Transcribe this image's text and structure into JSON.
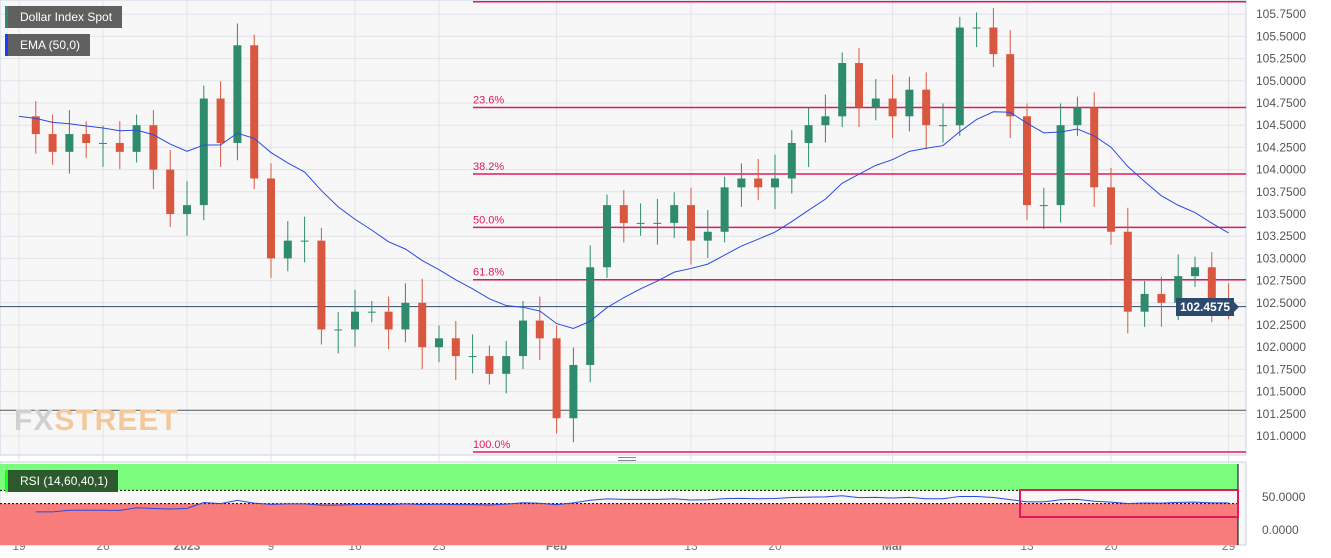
{
  "title": "Dollar Index Spot",
  "ema_label": "EMA (50,0)",
  "rsi_label": "RSI (14,60,40,1)",
  "last_price": "102.4575",
  "logo": {
    "a": "FX",
    "b": "STREET"
  },
  "colors": {
    "up": "#2e8b6e",
    "down": "#d9573f",
    "ema": "#2a4be0",
    "fib": "#e0195a",
    "rsi_line": "#2a4be0",
    "rsi_high": "#7cfc7c",
    "rsi_low": "#f87c7c"
  },
  "chart_data": {
    "type": "candlestick",
    "ylim": [
      100.75,
      105.9
    ],
    "yticks": [
      "105.7500",
      "105.5000",
      "105.2500",
      "105.0000",
      "104.7500",
      "104.5000",
      "104.2500",
      "104.0000",
      "103.7500",
      "103.5000",
      "103.2500",
      "103.0000",
      "102.7500",
      "102.5000",
      "102.2500",
      "102.0000",
      "101.7500",
      "101.5000",
      "101.2500",
      "101.0000"
    ],
    "xticks": [
      {
        "label": "19",
        "i": 0
      },
      {
        "label": "26",
        "i": 5
      },
      {
        "label": "2023",
        "i": 10,
        "bold": true
      },
      {
        "label": "9",
        "i": 15
      },
      {
        "label": "16",
        "i": 20
      },
      {
        "label": "23",
        "i": 25
      },
      {
        "label": "Feb",
        "i": 32,
        "bold": true
      },
      {
        "label": "13",
        "i": 40
      },
      {
        "label": "20",
        "i": 45
      },
      {
        "label": "Mar",
        "i": 52,
        "bold": true
      },
      {
        "label": "13",
        "i": 60
      },
      {
        "label": "20",
        "i": 65
      },
      {
        "label": "29",
        "i": 72
      }
    ],
    "closes": [
      104.6,
      104.4,
      104.2,
      104.4,
      104.3,
      104.3,
      104.2,
      104.5,
      104.0,
      103.5,
      103.6,
      104.8,
      104.3,
      105.4,
      103.9,
      103.0,
      103.2,
      103.2,
      102.2,
      102.2,
      102.4,
      102.4,
      102.2,
      102.5,
      102.0,
      102.1,
      101.9,
      101.9,
      101.7,
      101.9,
      102.3,
      102.1,
      101.2,
      101.8,
      102.9,
      103.6,
      103.4,
      103.4,
      103.4,
      103.6,
      103.2,
      103.3,
      103.8,
      103.9,
      103.8,
      103.9,
      104.3,
      104.5,
      104.6,
      105.2,
      104.7,
      104.8,
      104.6,
      104.9,
      104.5,
      104.5,
      105.6,
      105.6,
      105.3,
      104.6,
      103.6,
      103.6,
      104.5,
      104.7,
      103.8,
      103.3,
      102.4,
      102.6,
      102.5,
      102.8,
      102.9,
      102.5,
      102.46
    ],
    "fib_levels": [
      {
        "label": "",
        "price": 105.89
      },
      {
        "label": "23.6%",
        "price": 104.7
      },
      {
        "label": "38.2%",
        "price": 103.95
      },
      {
        "label": "50.0%",
        "price": 103.35
      },
      {
        "label": "61.8%",
        "price": 102.76
      },
      {
        "label": "100.0%",
        "price": 100.82
      }
    ],
    "support_line": 101.29,
    "ema_period": 50,
    "rsi": {
      "period": 14,
      "upper": 60,
      "lower": 40,
      "yticks": [
        "50.0000",
        "0.0000"
      ]
    }
  }
}
